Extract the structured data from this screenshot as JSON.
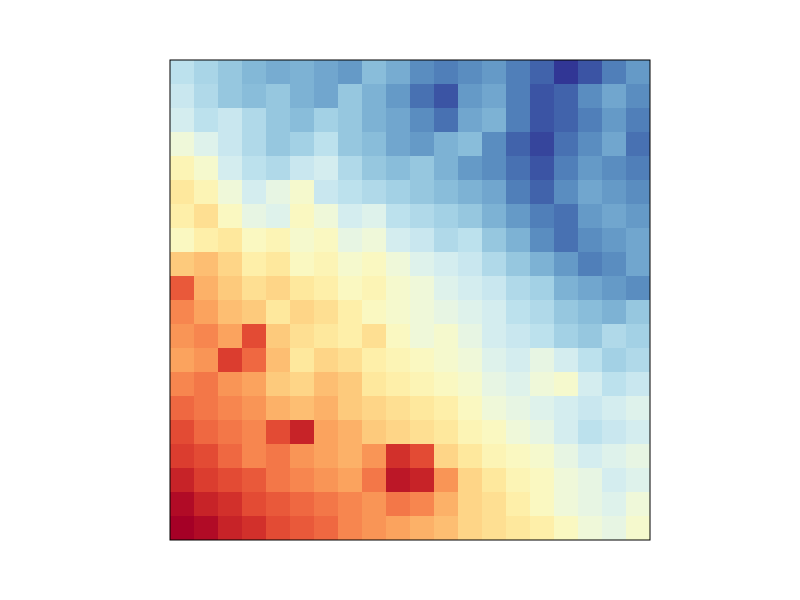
{
  "chart_data": {
    "type": "heatmap",
    "tick_labels": false,
    "values": [
      [
        0.36,
        0.33,
        0.3,
        0.27,
        0.25,
        0.26,
        0.24,
        0.22,
        0.28,
        0.25,
        0.2,
        0.18,
        0.2,
        0.22,
        0.18,
        0.14,
        0.08,
        0.12,
        0.18,
        0.22
      ],
      [
        0.38,
        0.34,
        0.3,
        0.28,
        0.3,
        0.26,
        0.24,
        0.3,
        0.26,
        0.22,
        0.16,
        0.12,
        0.22,
        0.24,
        0.18,
        0.12,
        0.14,
        0.2,
        0.24,
        0.2
      ],
      [
        0.4,
        0.36,
        0.38,
        0.34,
        0.3,
        0.28,
        0.32,
        0.3,
        0.26,
        0.24,
        0.2,
        0.16,
        0.24,
        0.26,
        0.18,
        0.12,
        0.14,
        0.18,
        0.22,
        0.18
      ],
      [
        0.46,
        0.42,
        0.38,
        0.34,
        0.3,
        0.32,
        0.36,
        0.3,
        0.28,
        0.24,
        0.22,
        0.26,
        0.28,
        0.2,
        0.14,
        0.1,
        0.16,
        0.2,
        0.24,
        0.16
      ],
      [
        0.52,
        0.48,
        0.4,
        0.36,
        0.34,
        0.38,
        0.4,
        0.34,
        0.3,
        0.28,
        0.3,
        0.26,
        0.22,
        0.2,
        0.16,
        0.12,
        0.18,
        0.22,
        0.2,
        0.18
      ],
      [
        0.56,
        0.52,
        0.46,
        0.4,
        0.44,
        0.48,
        0.38,
        0.36,
        0.34,
        0.32,
        0.3,
        0.28,
        0.26,
        0.24,
        0.18,
        0.14,
        0.2,
        0.24,
        0.22,
        0.2
      ],
      [
        0.54,
        0.58,
        0.5,
        0.44,
        0.42,
        0.5,
        0.46,
        0.4,
        0.42,
        0.36,
        0.34,
        0.32,
        0.3,
        0.26,
        0.22,
        0.18,
        0.16,
        0.22,
        0.24,
        0.22
      ],
      [
        0.5,
        0.54,
        0.56,
        0.5,
        0.52,
        0.48,
        0.5,
        0.44,
        0.46,
        0.4,
        0.38,
        0.34,
        0.36,
        0.3,
        0.26,
        0.2,
        0.16,
        0.2,
        0.22,
        0.24
      ],
      [
        0.62,
        0.64,
        0.6,
        0.54,
        0.56,
        0.5,
        0.52,
        0.48,
        0.5,
        0.46,
        0.42,
        0.4,
        0.38,
        0.34,
        0.3,
        0.26,
        0.22,
        0.18,
        0.2,
        0.24
      ],
      [
        0.78,
        0.66,
        0.62,
        0.58,
        0.6,
        0.56,
        0.54,
        0.5,
        0.52,
        0.48,
        0.46,
        0.42,
        0.4,
        0.38,
        0.34,
        0.32,
        0.26,
        0.24,
        0.22,
        0.2
      ],
      [
        0.72,
        0.68,
        0.64,
        0.62,
        0.56,
        0.6,
        0.58,
        0.54,
        0.5,
        0.48,
        0.46,
        0.44,
        0.42,
        0.4,
        0.36,
        0.34,
        0.3,
        0.28,
        0.26,
        0.3
      ],
      [
        0.7,
        0.72,
        0.68,
        0.8,
        0.62,
        0.58,
        0.56,
        0.54,
        0.58,
        0.5,
        0.46,
        0.48,
        0.44,
        0.4,
        0.38,
        0.36,
        0.32,
        0.3,
        0.34,
        0.32
      ],
      [
        0.68,
        0.7,
        0.82,
        0.76,
        0.64,
        0.56,
        0.6,
        0.58,
        0.54,
        0.52,
        0.5,
        0.48,
        0.46,
        0.42,
        0.4,
        0.44,
        0.4,
        0.36,
        0.32,
        0.34
      ],
      [
        0.72,
        0.74,
        0.7,
        0.68,
        0.62,
        0.6,
        0.64,
        0.62,
        0.56,
        0.54,
        0.52,
        0.5,
        0.48,
        0.44,
        0.42,
        0.46,
        0.48,
        0.4,
        0.36,
        0.38
      ],
      [
        0.76,
        0.74,
        0.72,
        0.7,
        0.66,
        0.64,
        0.66,
        0.62,
        0.6,
        0.58,
        0.56,
        0.54,
        0.5,
        0.46,
        0.44,
        0.42,
        0.4,
        0.38,
        0.4,
        0.42
      ],
      [
        0.8,
        0.76,
        0.74,
        0.72,
        0.8,
        0.86,
        0.68,
        0.66,
        0.62,
        0.6,
        0.58,
        0.56,
        0.52,
        0.5,
        0.46,
        0.44,
        0.4,
        0.36,
        0.38,
        0.4
      ],
      [
        0.82,
        0.8,
        0.76,
        0.72,
        0.74,
        0.7,
        0.68,
        0.66,
        0.7,
        0.84,
        0.8,
        0.6,
        0.56,
        0.52,
        0.5,
        0.48,
        0.44,
        0.4,
        0.42,
        0.44
      ],
      [
        0.86,
        0.82,
        0.8,
        0.78,
        0.74,
        0.72,
        0.7,
        0.68,
        0.74,
        0.88,
        0.86,
        0.7,
        0.6,
        0.56,
        0.52,
        0.5,
        0.46,
        0.44,
        0.4,
        0.42
      ],
      [
        0.9,
        0.86,
        0.84,
        0.8,
        0.78,
        0.76,
        0.74,
        0.72,
        0.7,
        0.74,
        0.72,
        0.66,
        0.6,
        0.58,
        0.54,
        0.5,
        0.46,
        0.44,
        0.42,
        0.46
      ],
      [
        0.92,
        0.9,
        0.86,
        0.84,
        0.8,
        0.78,
        0.76,
        0.72,
        0.7,
        0.68,
        0.66,
        0.64,
        0.6,
        0.58,
        0.56,
        0.54,
        0.5,
        0.46,
        0.44,
        0.48
      ]
    ]
  }
}
